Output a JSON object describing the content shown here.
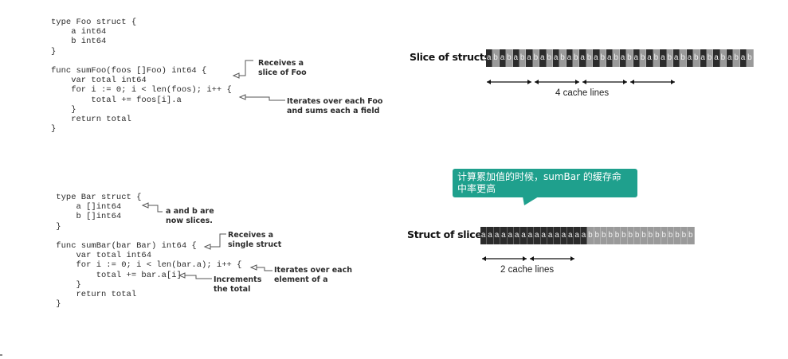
{
  "code_foo": [
    "type Foo struct {",
    "    a int64",
    "    b int64",
    "}",
    "",
    "func sumFoo(foos []Foo) int64 {",
    "    var total int64",
    "    for i := 0; i < len(foos); i++ {",
    "        total += foos[i].a",
    "    }",
    "    return total",
    "}"
  ],
  "code_bar": [
    " type Bar struct {",
    "     a []int64",
    "     b []int64",
    " }",
    "",
    " func sumBar(bar Bar) int64 {",
    "     var total int64",
    "     for i := 0; i < len(bar.a); i++ {",
    "         total += bar.a[i]",
    "     }",
    "     return total",
    " }"
  ],
  "annotations": {
    "receives_slice_foo": [
      "Receives a",
      "slice of Foo"
    ],
    "iterates_foo": [
      "Iterates over each Foo",
      "and sums each a field"
    ],
    "now_slices": [
      "a and b are",
      "now slices."
    ],
    "receives_single_struct": [
      "Receives a",
      "single struct"
    ],
    "increments_total": [
      "Increments",
      "the total"
    ],
    "iterates_element": [
      "Iterates over each",
      "element of a"
    ]
  },
  "slice_of_structs": {
    "label": "Slice of structs",
    "cells": "abababababababababababababababababababab",
    "cache_lines_label": "4 cache lines",
    "cache_line_count": 4
  },
  "struct_of_slices": {
    "label": "Struct of slices",
    "cells": "aaaaaaaaaaaaaaaabbbbbbbbbbbbbbbb",
    "cache_lines_label": "2 cache lines",
    "cache_line_count": 2
  },
  "callout": {
    "line1": "计算累加值的时候，sumBar 的缓存命",
    "line2": "中率更高"
  },
  "colors": {
    "a_cell": "#2b2b2b",
    "b_cell_dark": "#6a6a6a",
    "b_cell_light": "#9a9a9a",
    "callout_bg": "#1fa08d"
  }
}
